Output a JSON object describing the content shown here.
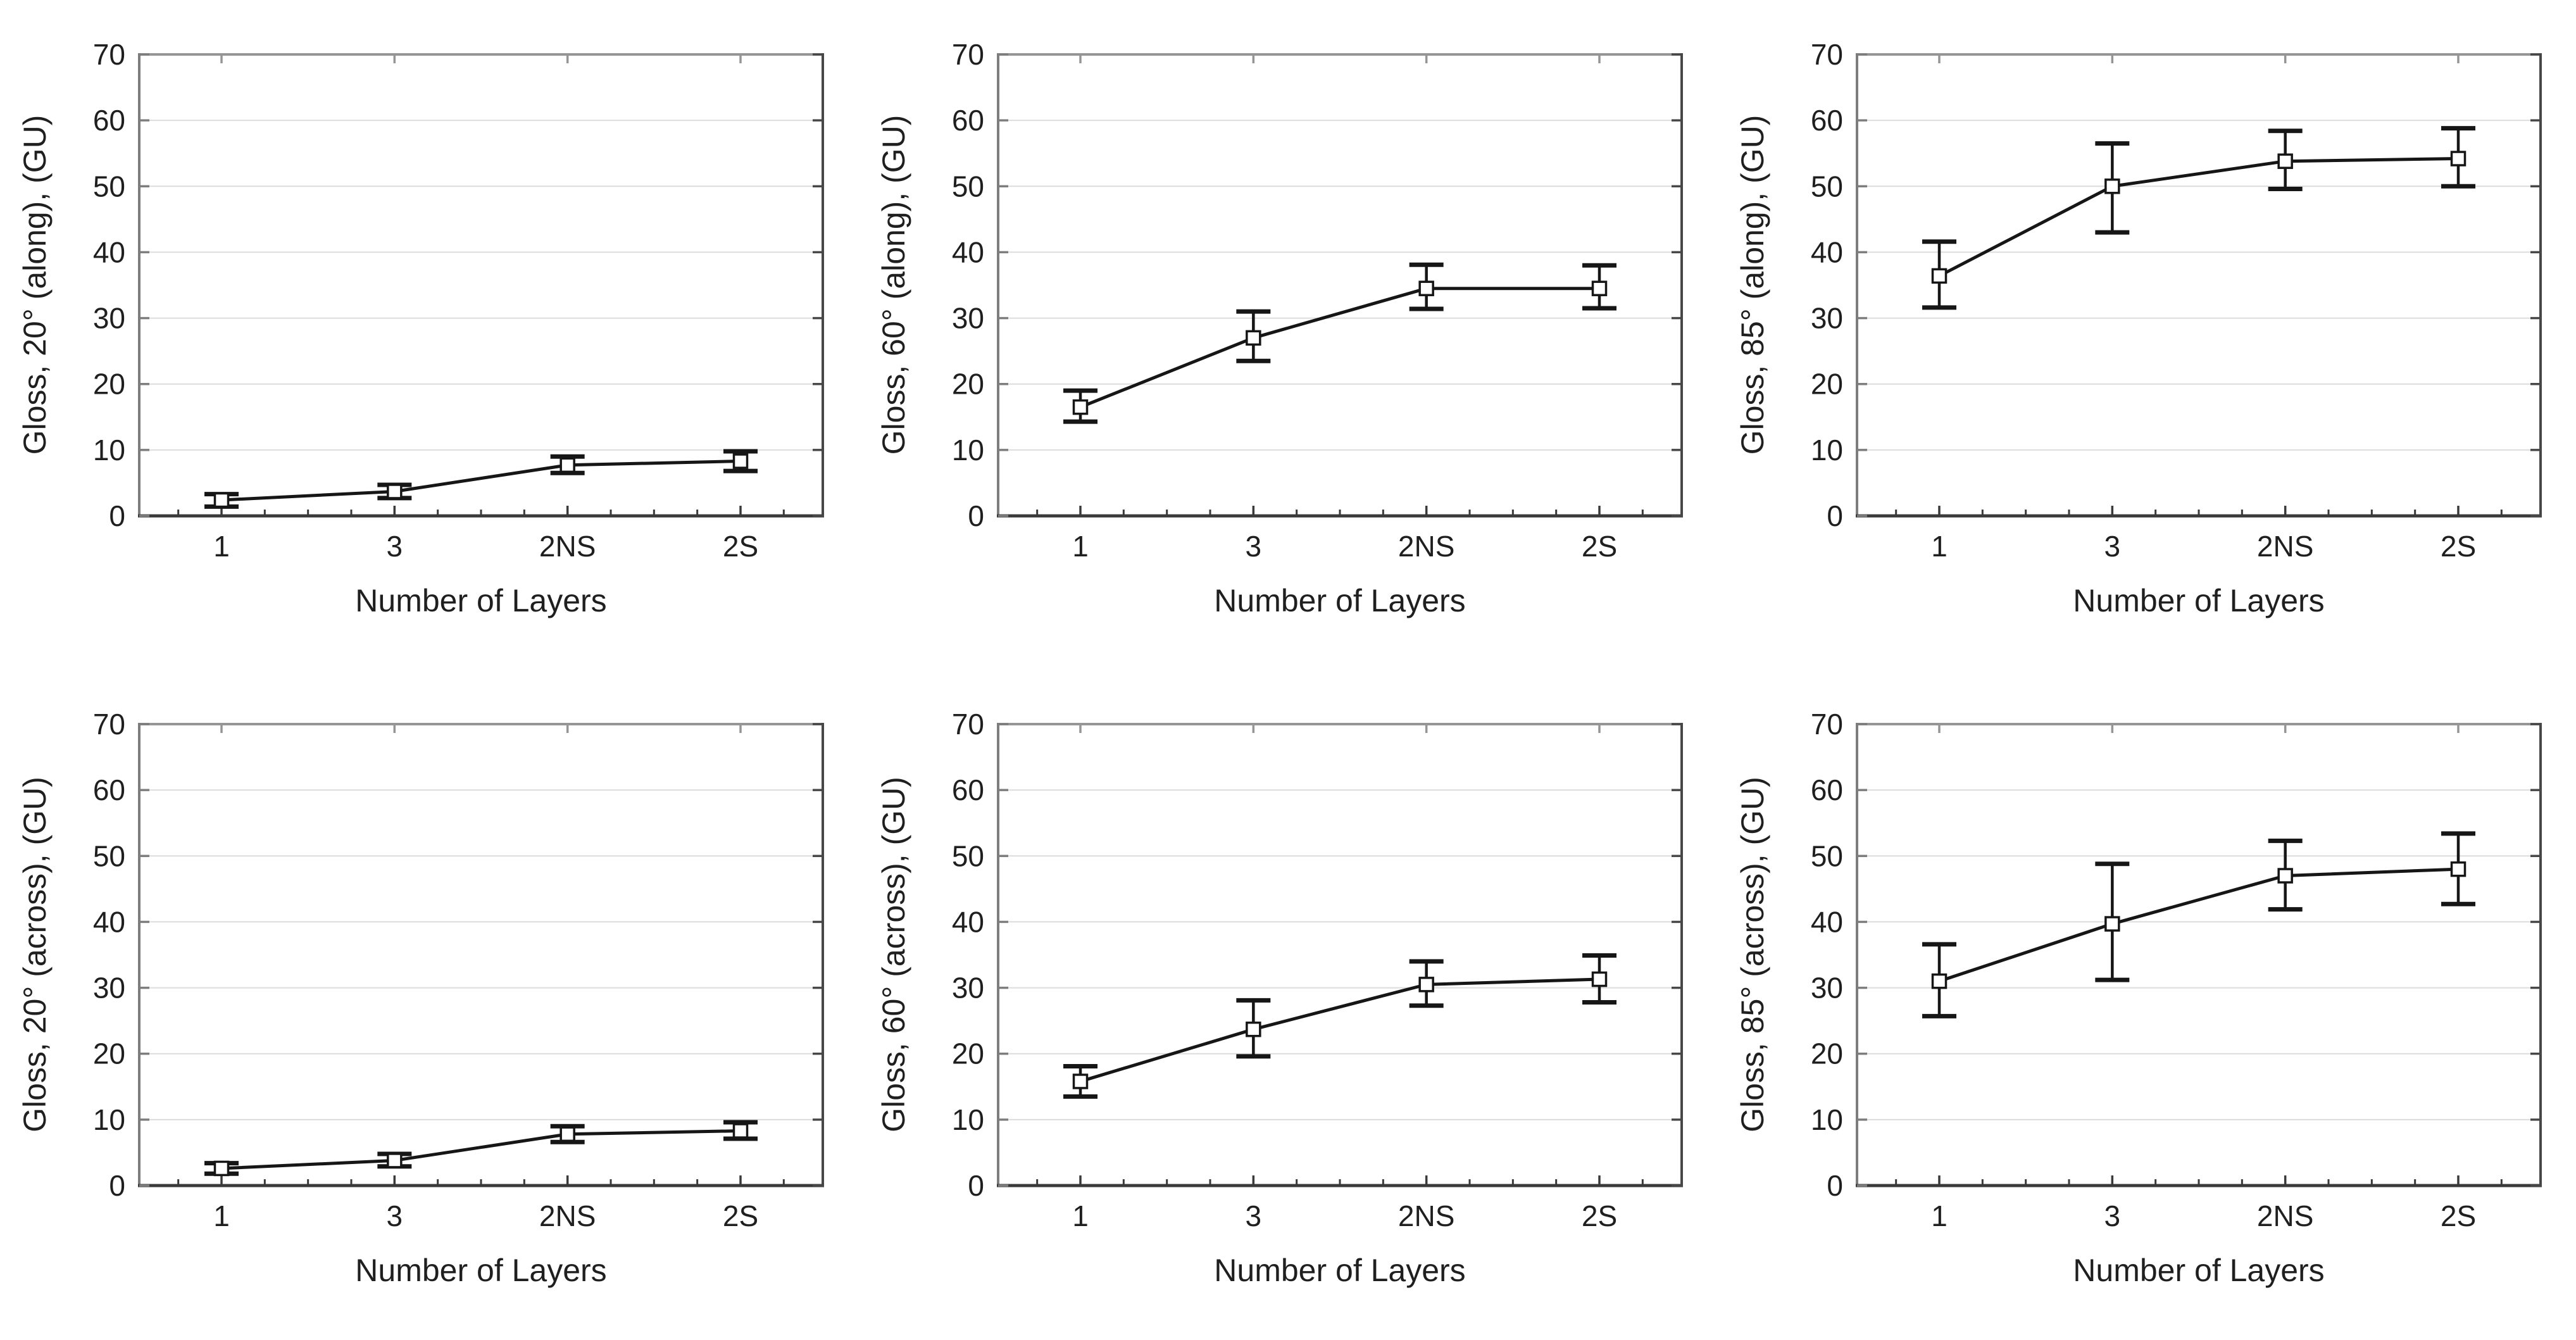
{
  "figure": {
    "x_axis_label": "Number of Layers",
    "categories": [
      "1",
      "3",
      "2NS",
      "2S"
    ],
    "y_axis": {
      "min": 0,
      "max": 70,
      "tick_step": 10,
      "ticks": [
        0,
        10,
        20,
        30,
        40,
        50,
        60,
        70
      ]
    },
    "style": {
      "background": "#ffffff",
      "line_color": "#161616",
      "marker": "open-square",
      "marker_fill": "#ffffff",
      "grid_color": "#dcdcdc",
      "frame_top_color": "#959595",
      "frame_left_color": "#7d7d7d",
      "frame_bottom_color": "#3a3a3a",
      "frame_right_color": "#474747",
      "text_color": "#1f1f1f"
    }
  },
  "chart_data": [
    {
      "id": "gloss-20-along",
      "type": "line",
      "ylabel": "Gloss, 20° (along), (GU)",
      "xlabel": "Number of Layers",
      "categories": [
        "1",
        "3",
        "2NS",
        "2S"
      ],
      "values": [
        2.4,
        3.7,
        7.7,
        8.3
      ],
      "error_low": [
        1.4,
        2.7,
        6.5,
        6.8
      ],
      "error_high": [
        3.3,
        4.7,
        9.0,
        9.8
      ],
      "ylim": [
        0,
        70
      ],
      "grid": true,
      "legend": "none"
    },
    {
      "id": "gloss-60-along",
      "type": "line",
      "ylabel": "Gloss, 60° (along), (GU)",
      "xlabel": "Number of Layers",
      "categories": [
        "1",
        "3",
        "2NS",
        "2S"
      ],
      "values": [
        16.5,
        27.0,
        34.5,
        34.5
      ],
      "error_low": [
        14.3,
        23.5,
        31.4,
        31.5
      ],
      "error_high": [
        19.0,
        31.0,
        38.1,
        38.0
      ],
      "ylim": [
        0,
        70
      ],
      "grid": true,
      "legend": "none"
    },
    {
      "id": "gloss-85-along",
      "type": "line",
      "ylabel": "Gloss, 85° (along), (GU)",
      "xlabel": "Number of Layers",
      "categories": [
        "1",
        "3",
        "2NS",
        "2S"
      ],
      "values": [
        36.4,
        50.0,
        53.8,
        54.2
      ],
      "error_low": [
        31.6,
        43.0,
        49.6,
        50.0
      ],
      "error_high": [
        41.6,
        56.5,
        58.4,
        58.8
      ],
      "ylim": [
        0,
        70
      ],
      "grid": true,
      "legend": "none"
    },
    {
      "id": "gloss-20-across",
      "type": "line",
      "ylabel": "Gloss, 20° (across), (GU)",
      "xlabel": "Number of Layers",
      "categories": [
        "1",
        "3",
        "2NS",
        "2S"
      ],
      "values": [
        2.6,
        3.8,
        7.8,
        8.3
      ],
      "error_low": [
        1.8,
        2.9,
        6.6,
        7.1
      ],
      "error_high": [
        3.4,
        4.8,
        9.0,
        9.6
      ],
      "ylim": [
        0,
        70
      ],
      "grid": true,
      "legend": "none"
    },
    {
      "id": "gloss-60-across",
      "type": "line",
      "ylabel": "Gloss, 60° (across), (GU)",
      "xlabel": "Number of Layers",
      "categories": [
        "1",
        "3",
        "2NS",
        "2S"
      ],
      "values": [
        15.8,
        23.7,
        30.5,
        31.3
      ],
      "error_low": [
        13.5,
        19.6,
        27.3,
        27.8
      ],
      "error_high": [
        18.1,
        28.1,
        34.0,
        34.9
      ],
      "ylim": [
        0,
        70
      ],
      "grid": true,
      "legend": "none"
    },
    {
      "id": "gloss-85-across",
      "type": "line",
      "ylabel": "Gloss, 85° (across), (GU)",
      "xlabel": "Number of Layers",
      "categories": [
        "1",
        "3",
        "2NS",
        "2S"
      ],
      "values": [
        31.0,
        39.7,
        47.0,
        48.0
      ],
      "error_low": [
        25.7,
        31.2,
        41.9,
        42.7
      ],
      "error_high": [
        36.6,
        48.8,
        52.3,
        53.4
      ],
      "ylim": [
        0,
        70
      ],
      "grid": true,
      "legend": "none"
    }
  ]
}
